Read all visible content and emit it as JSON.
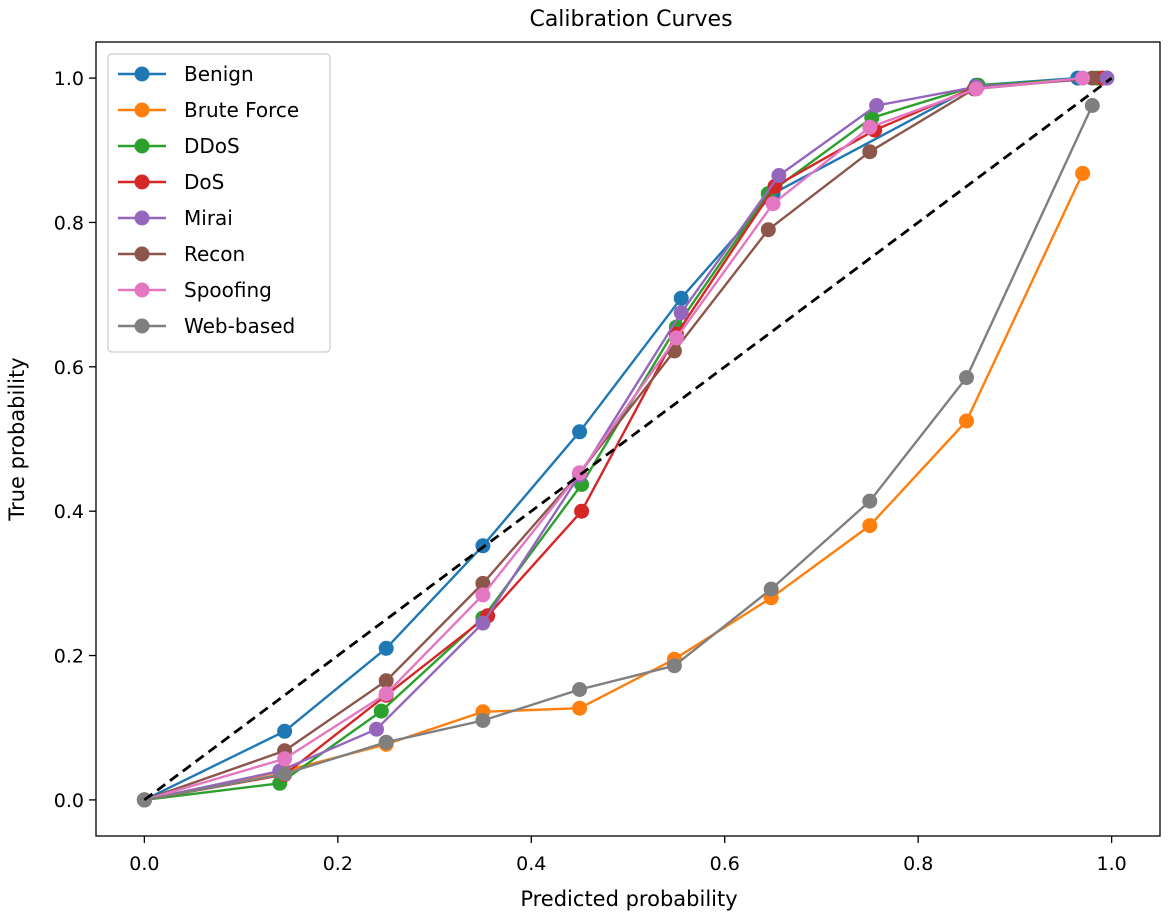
{
  "chart_data": {
    "type": "line",
    "title": "Calibration Curves",
    "xlabel": "Predicted probability",
    "ylabel": "True probability",
    "xlim": [
      -0.05,
      1.05
    ],
    "ylim": [
      -0.05,
      1.05
    ],
    "xticks": [
      0.0,
      0.2,
      0.4,
      0.6,
      0.8,
      1.0
    ],
    "yticks": [
      0.0,
      0.2,
      0.4,
      0.6,
      0.8,
      1.0
    ],
    "xtick_labels": [
      "0.0",
      "0.2",
      "0.4",
      "0.6",
      "0.8",
      "1.0"
    ],
    "ytick_labels": [
      "0.0",
      "0.2",
      "0.4",
      "0.6",
      "0.8",
      "1.0"
    ],
    "grid": false,
    "legend_position": "top-left",
    "reference_line": {
      "x": [
        0,
        1
      ],
      "y": [
        0,
        1
      ],
      "style": "dashed",
      "color": "#000000"
    },
    "series": [
      {
        "name": "Benign",
        "color": "#1f77b4",
        "x": [
          0.0,
          0.145,
          0.25,
          0.35,
          0.45,
          0.555,
          0.65,
          0.86,
          0.965,
          0.995
        ],
        "y": [
          0.0,
          0.095,
          0.21,
          0.352,
          0.51,
          0.695,
          0.84,
          0.99,
          1.0,
          1.0
        ]
      },
      {
        "name": "Brute Force",
        "color": "#ff7f0e",
        "x": [
          0.0,
          0.145,
          0.25,
          0.35,
          0.45,
          0.548,
          0.648,
          0.75,
          0.85,
          0.97
        ],
        "y": [
          0.0,
          0.04,
          0.077,
          0.122,
          0.127,
          0.195,
          0.28,
          0.38,
          0.525,
          0.868
        ]
      },
      {
        "name": "DDoS",
        "color": "#2ca02c",
        "x": [
          0.0,
          0.14,
          0.245,
          0.35,
          0.452,
          0.55,
          0.645,
          0.752,
          0.862,
          0.985
        ],
        "y": [
          0.0,
          0.023,
          0.123,
          0.252,
          0.437,
          0.655,
          0.84,
          0.945,
          0.99,
          1.0
        ]
      },
      {
        "name": "DoS",
        "color": "#d62728",
        "x": [
          0.0,
          0.145,
          0.25,
          0.355,
          0.452,
          0.55,
          0.652,
          0.755,
          0.86,
          0.99
        ],
        "y": [
          0.0,
          0.035,
          0.145,
          0.255,
          0.4,
          0.645,
          0.85,
          0.928,
          0.988,
          1.0
        ]
      },
      {
        "name": "Mirai",
        "color": "#9467bd",
        "x": [
          0.0,
          0.14,
          0.24,
          0.35,
          0.45,
          0.555,
          0.656,
          0.757,
          0.86,
          0.995
        ],
        "y": [
          0.0,
          0.04,
          0.098,
          0.245,
          0.45,
          0.675,
          0.865,
          0.962,
          0.988,
          1.0
        ]
      },
      {
        "name": "Recon",
        "color": "#8c564b",
        "x": [
          0.0,
          0.145,
          0.25,
          0.35,
          0.45,
          0.548,
          0.645,
          0.75,
          0.858,
          0.98
        ],
        "y": [
          0.0,
          0.068,
          0.165,
          0.3,
          0.453,
          0.622,
          0.79,
          0.898,
          0.985,
          1.0
        ]
      },
      {
        "name": "Spoofing",
        "color": "#e377c2",
        "x": [
          0.0,
          0.145,
          0.25,
          0.35,
          0.45,
          0.55,
          0.65,
          0.75,
          0.86,
          0.97
        ],
        "y": [
          0.0,
          0.057,
          0.147,
          0.284,
          0.453,
          0.64,
          0.826,
          0.932,
          0.985,
          1.0
        ]
      },
      {
        "name": "Web-based",
        "color": "#7f7f7f",
        "x": [
          0.0,
          0.145,
          0.25,
          0.35,
          0.45,
          0.548,
          0.648,
          0.75,
          0.85,
          0.98
        ],
        "y": [
          0.0,
          0.036,
          0.08,
          0.11,
          0.153,
          0.186,
          0.292,
          0.414,
          0.585,
          0.962
        ]
      }
    ]
  }
}
